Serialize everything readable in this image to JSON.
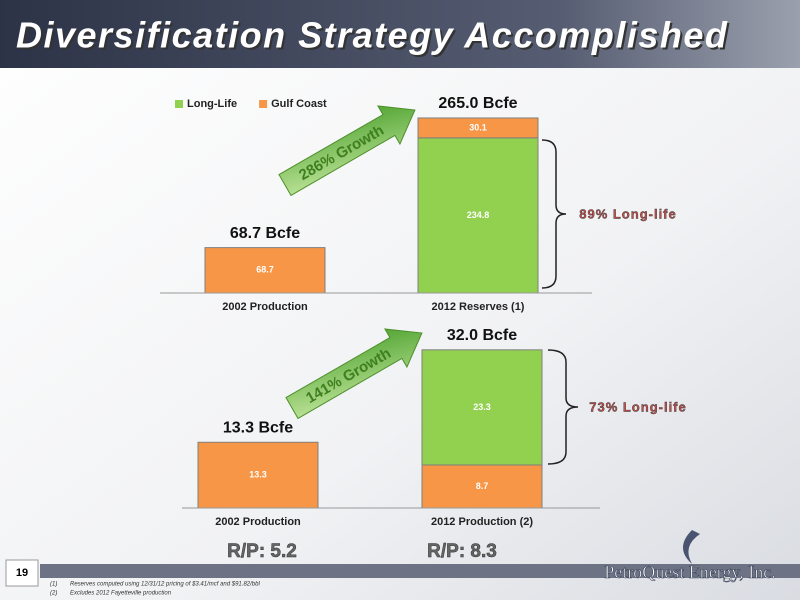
{
  "title": "Diversification Strategy Accomplished",
  "page_number": "19",
  "footnotes": [
    "(1)",
    "Reserves computed using 12/31/12 pricing of $3.41/mcf and $91.82/bbl",
    "(2)",
    "Excludes 2012 Fayetteville production"
  ],
  "logo": "PetroQuest Energy, Inc.",
  "rp_labels": [
    "R/P: 5.2",
    "R/P: 8.3"
  ],
  "chart_data": [
    {
      "type": "stacked_bar",
      "categories": [
        "2002 Production",
        "2012 Reserves (1)"
      ],
      "series": [
        {
          "name": "Long-Life",
          "color": "#92d050",
          "values": [
            null,
            234.8
          ]
        },
        {
          "name": "Gulf Coast",
          "color": "#f79646",
          "values": [
            68.7,
            30.1
          ]
        }
      ],
      "total_labels": [
        "68.7 Bcfe",
        "265.0 Bcfe"
      ],
      "growth": "286% Growth",
      "long_life": "89% Long-life",
      "ylim": [
        0,
        280
      ],
      "legend": "top-left"
    },
    {
      "type": "stacked_bar",
      "categories": [
        "2002 Production",
        "2012 Production (2)"
      ],
      "series": [
        {
          "name": "Gulf Coast",
          "color": "#f79646",
          "values": [
            13.3,
            8.7
          ]
        },
        {
          "name": "Long-Life",
          "color": "#92d050",
          "values": [
            null,
            23.3
          ]
        }
      ],
      "total_labels": [
        "13.3 Bcfe",
        "32.0 Bcfe"
      ],
      "growth": "141% Growth",
      "long_life": "73% Long-life",
      "ylim": [
        0,
        35
      ]
    }
  ]
}
